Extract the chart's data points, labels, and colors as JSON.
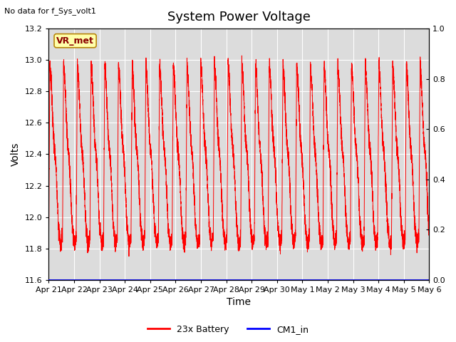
{
  "title": "System Power Voltage",
  "top_left_text": "No data for f_Sys_volt1",
  "ylabel_left": "Volts",
  "xlabel": "Time",
  "ylim_left": [
    11.6,
    13.2
  ],
  "ylim_right": [
    0.0,
    1.0
  ],
  "yticks_left": [
    11.6,
    11.8,
    12.0,
    12.2,
    12.4,
    12.6,
    12.8,
    13.0,
    13.2
  ],
  "yticks_right": [
    0.0,
    0.2,
    0.4,
    0.6,
    0.8,
    1.0
  ],
  "xtick_labels": [
    "Apr 21",
    "Apr 22",
    "Apr 23",
    "Apr 24",
    "Apr 25",
    "Apr 26",
    "Apr 27",
    "Apr 28",
    "Apr 29",
    "Apr 30",
    "May 1",
    "May 2",
    "May 3",
    "May 4",
    "May 5",
    "May 6"
  ],
  "legend_entries": [
    "23x Battery",
    "CM1_in"
  ],
  "legend_colors": [
    "red",
    "blue"
  ],
  "vr_met_label": "VR_met",
  "plot_bg_color": "#dcdcdc",
  "line_color_battery": "red",
  "line_color_cm1": "blue",
  "title_fontsize": 13,
  "label_fontsize": 10,
  "tick_fontsize": 8
}
